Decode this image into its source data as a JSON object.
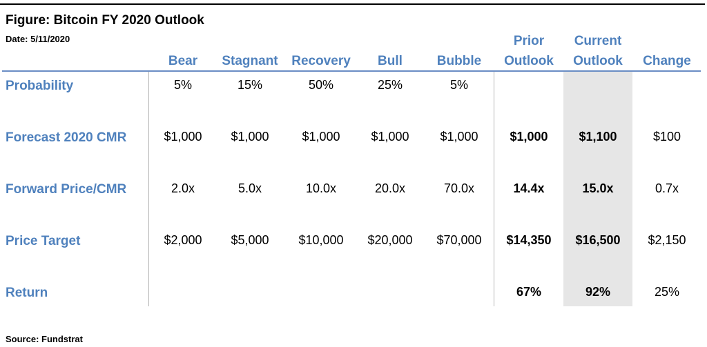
{
  "figure": {
    "title": "Figure: Bitcoin FY 2020 Outlook",
    "date": "Date: 5/11/2020",
    "source": "Source: Fundstrat"
  },
  "chart_data": {
    "type": "table",
    "columns": [
      {
        "line1": "",
        "line2": "Bear"
      },
      {
        "line1": "",
        "line2": "Stagnant"
      },
      {
        "line1": "",
        "line2": "Recovery"
      },
      {
        "line1": "",
        "line2": "Bull"
      },
      {
        "line1": "",
        "line2": "Bubble"
      },
      {
        "line1": "Prior",
        "line2": "Outlook"
      },
      {
        "line1": "Current",
        "line2": "Outlook"
      },
      {
        "line1": "",
        "line2": "Change"
      }
    ],
    "rows": [
      {
        "label": "Probability",
        "cells": [
          "5%",
          "15%",
          "50%",
          "25%",
          "5%",
          "",
          "",
          ""
        ]
      },
      {
        "label": "Forecast 2020 CMR",
        "cells": [
          "$1,000",
          "$1,000",
          "$1,000",
          "$1,000",
          "$1,000",
          "$1,000",
          "$1,100",
          "$100"
        ]
      },
      {
        "label": "Forward Price/CMR",
        "cells": [
          "2.0x",
          "5.0x",
          "10.0x",
          "20.0x",
          "70.0x",
          "14.4x",
          "15.0x",
          "0.7x"
        ]
      },
      {
        "label": "Price Target",
        "cells": [
          "$2,000",
          "$5,000",
          "$10,000",
          "$20,000",
          "$70,000",
          "$14,350",
          "$16,500",
          "$2,150"
        ]
      },
      {
        "label": "Return",
        "cells": [
          "",
          "",
          "",
          "",
          "",
          "67%",
          "92%",
          "25%"
        ]
      }
    ],
    "bold_columns": [
      5,
      6
    ],
    "highlighted_column": 6,
    "colors": {
      "header": "#4f81bd",
      "highlight": "#e6e6e6",
      "rule": "#6a8dc4"
    }
  }
}
